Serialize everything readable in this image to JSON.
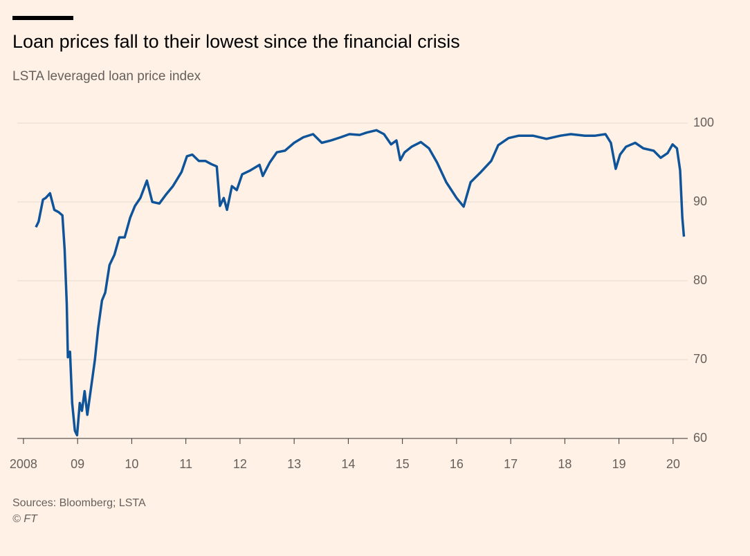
{
  "chart_data": {
    "type": "line",
    "title": "Loan prices fall to their lowest since the financial crisis",
    "subtitle": "LSTA leveraged loan price index",
    "source": "Sources: Bloomberg; LSTA",
    "credit": "© FT",
    "x": [
      2008.23,
      2008.28,
      2008.36,
      2008.41,
      2008.49,
      2008.57,
      2008.65,
      2008.72,
      2008.76,
      2008.8,
      2008.82,
      2008.86,
      2008.9,
      2008.95,
      2008.99,
      2009.04,
      2009.08,
      2009.13,
      2009.18,
      2009.26,
      2009.32,
      2009.38,
      2009.45,
      2009.51,
      2009.59,
      2009.68,
      2009.77,
      2009.87,
      2009.97,
      2010.06,
      2010.16,
      2010.28,
      2010.38,
      2010.51,
      2010.64,
      2010.76,
      2010.92,
      2011.02,
      2011.12,
      2011.24,
      2011.36,
      2011.47,
      2011.57,
      2011.63,
      2011.7,
      2011.76,
      2011.85,
      2011.94,
      2012.04,
      2012.19,
      2012.36,
      2012.42,
      2012.55,
      2012.68,
      2012.83,
      2013.0,
      2013.17,
      2013.35,
      2013.51,
      2013.68,
      2013.86,
      2014.02,
      2014.21,
      2014.34,
      2014.52,
      2014.66,
      2014.79,
      2014.89,
      2014.96,
      2015.04,
      2015.17,
      2015.34,
      2015.49,
      2015.64,
      2015.81,
      2016.0,
      2016.13,
      2016.26,
      2016.45,
      2016.64,
      2016.77,
      2016.96,
      2017.15,
      2017.41,
      2017.66,
      2017.92,
      2018.11,
      2018.37,
      2018.56,
      2018.75,
      2018.85,
      2018.94,
      2019.02,
      2019.13,
      2019.3,
      2019.45,
      2019.64,
      2019.77,
      2019.9,
      2019.99,
      2020.07,
      2020.13,
      2020.17,
      2020.2
    ],
    "series": [
      {
        "name": "LSTA leveraged loan price index",
        "color": "#0f5499",
        "values": [
          86.8,
          87.5,
          90.3,
          90.5,
          91.1,
          89,
          88.7,
          88.3,
          84,
          77,
          70.3,
          71,
          64.5,
          61,
          60.4,
          64.5,
          63.5,
          66,
          63,
          67,
          70,
          74,
          77.5,
          78.5,
          82,
          83.3,
          85.5,
          85.5,
          88,
          89.5,
          90.5,
          92.7,
          90,
          89.8,
          91,
          92,
          93.8,
          95.8,
          96,
          95.2,
          95.2,
          94.8,
          94.5,
          89.5,
          90.5,
          89,
          92,
          91.5,
          93.5,
          94,
          94.7,
          93.3,
          95,
          96.3,
          96.5,
          97.5,
          98.2,
          98.6,
          97.5,
          97.8,
          98.2,
          98.6,
          98.5,
          98.8,
          99.1,
          98.6,
          97.3,
          97.8,
          95.3,
          96.3,
          97,
          97.6,
          96.8,
          95,
          92.5,
          90.5,
          89.4,
          92.5,
          93.8,
          95.2,
          97.2,
          98.1,
          98.4,
          98.4,
          98,
          98.4,
          98.6,
          98.4,
          98.4,
          98.6,
          97.5,
          94.2,
          96,
          97,
          97.5,
          96.8,
          96.5,
          95.6,
          96.2,
          97.3,
          96.8,
          94,
          88,
          85.6
        ]
      }
    ],
    "xlim": [
      2007.95,
      2020.27
    ],
    "xticks": [
      2008,
      {
        "value": 2009,
        "label": "09"
      },
      {
        "value": 2010,
        "label": "10"
      },
      {
        "value": 2011,
        "label": "11"
      },
      {
        "value": 2012,
        "label": "12"
      },
      {
        "value": 2013,
        "label": "13"
      },
      {
        "value": 2014,
        "label": "14"
      },
      {
        "value": 2015,
        "label": "15"
      },
      {
        "value": 2016,
        "label": "16"
      },
      {
        "value": 2017,
        "label": "17"
      },
      {
        "value": 2018,
        "label": "18"
      },
      {
        "value": 2019,
        "label": "19"
      },
      {
        "value": 2020,
        "label": "20"
      }
    ],
    "ylim": [
      60,
      100
    ],
    "yticks": [
      60,
      70,
      80,
      90,
      100
    ],
    "grid": true
  }
}
